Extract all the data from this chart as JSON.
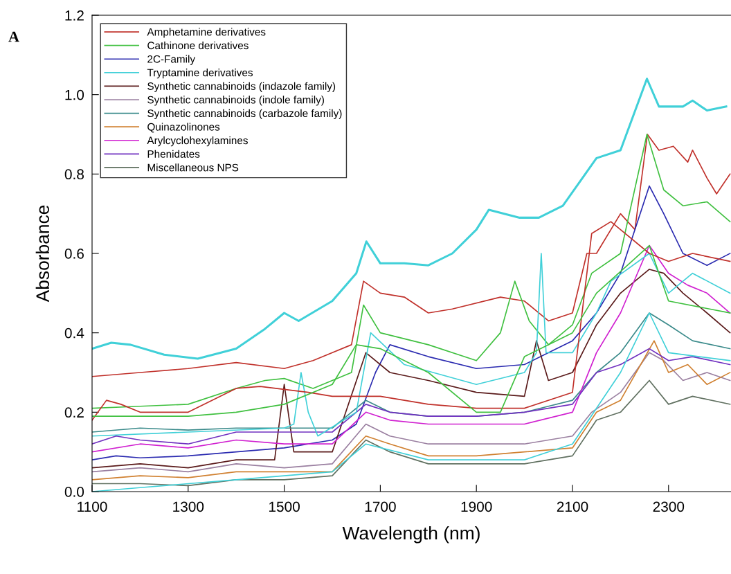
{
  "chart_data": {
    "type": "line",
    "xlabel": "Wavelength (nm)",
    "ylabel": "Absorbance",
    "annotations": [
      "A"
    ],
    "xlim": [
      1100,
      2430
    ],
    "xticks": [
      1100,
      1300,
      1500,
      1700,
      1900,
      2100,
      2300
    ],
    "ylim": [
      0,
      1.2
    ],
    "yticks": [
      {
        "value": 0,
        "label": "0.0"
      },
      {
        "value": 0.2,
        "label": "0.2"
      },
      {
        "value": 0.4,
        "label": "0.4"
      },
      {
        "value": 0.6,
        "label": "0.6"
      },
      {
        "value": 0.8,
        "label": "0.8"
      },
      {
        "value": 1,
        "label": "1.0"
      },
      {
        "value": 1.2,
        "label": "1.2"
      }
    ],
    "grid": false,
    "legend": "top left",
    "marker": "none",
    "line_style": "solid",
    "series": [
      {
        "name": "Amphetamine derivatives",
        "color": "#c0302a",
        "x": [
          1100,
          1200,
          1300,
          1400,
          1500,
          1560,
          1640,
          1665,
          1700,
          1750,
          1800,
          1850,
          1950,
          2000,
          2050,
          2100,
          2130,
          2150,
          2200,
          2230,
          2256,
          2280,
          2310,
          2340,
          2350,
          2380,
          2400,
          2428
        ],
        "values": [
          0.29,
          0.3,
          0.31,
          0.325,
          0.31,
          0.33,
          0.37,
          0.53,
          0.5,
          0.49,
          0.45,
          0.46,
          0.49,
          0.48,
          0.43,
          0.45,
          0.6,
          0.6,
          0.7,
          0.66,
          0.9,
          0.86,
          0.87,
          0.83,
          0.86,
          0.79,
          0.75,
          0.8
        ]
      },
      {
        "name": "Cathinone derivatives",
        "color": "#40c040",
        "x": [
          1100,
          1200,
          1300,
          1400,
          1460,
          1500,
          1560,
          1640,
          1665,
          1700,
          1800,
          1900,
          1950,
          1980,
          2010,
          2050,
          2100,
          2140,
          2200,
          2255,
          2290,
          2330,
          2380,
          2428
        ],
        "values": [
          0.21,
          0.215,
          0.22,
          0.26,
          0.28,
          0.285,
          0.26,
          0.3,
          0.47,
          0.4,
          0.37,
          0.33,
          0.4,
          0.53,
          0.43,
          0.37,
          0.42,
          0.55,
          0.6,
          0.9,
          0.76,
          0.72,
          0.73,
          0.68
        ]
      },
      {
        "name": "2C-Family",
        "color": "#2a2ab0",
        "x": [
          1100,
          1150,
          1200,
          1300,
          1400,
          1500,
          1600,
          1650,
          1690,
          1720,
          1800,
          1900,
          2000,
          2100,
          2150,
          2200,
          2260,
          2290,
          2330,
          2380,
          2428
        ],
        "values": [
          0.08,
          0.09,
          0.085,
          0.09,
          0.1,
          0.11,
          0.13,
          0.17,
          0.3,
          0.37,
          0.34,
          0.31,
          0.32,
          0.38,
          0.45,
          0.55,
          0.77,
          0.7,
          0.6,
          0.57,
          0.6
        ]
      },
      {
        "name": "Tryptamine derivatives",
        "color": "#40d0d8",
        "x": [
          1100,
          1140,
          1180,
          1250,
          1320,
          1400,
          1460,
          1500,
          1530,
          1600,
          1650,
          1671,
          1700,
          1750,
          1800,
          1850,
          1900,
          1926,
          1990,
          2030,
          2080,
          2150,
          2200,
          2255,
          2280,
          2330,
          2350,
          2380,
          2420
        ],
        "values": [
          0.36,
          0.375,
          0.37,
          0.345,
          0.335,
          0.36,
          0.41,
          0.45,
          0.43,
          0.48,
          0.55,
          0.63,
          0.575,
          0.575,
          0.57,
          0.6,
          0.66,
          0.71,
          0.69,
          0.69,
          0.72,
          0.84,
          0.86,
          1.04,
          0.97,
          0.97,
          0.985,
          0.96,
          0.97
        ]
      },
      {
        "name": "Synthetic cannabinoids (indazole family)",
        "color": "#5a1a1a",
        "x": [
          1100,
          1200,
          1300,
          1400,
          1480,
          1500,
          1520,
          1600,
          1670,
          1720,
          1800,
          1900,
          2000,
          2025,
          2050,
          2100,
          2150,
          2200,
          2260,
          2290,
          2330,
          2380,
          2428
        ],
        "values": [
          0.06,
          0.07,
          0.06,
          0.08,
          0.08,
          0.27,
          0.1,
          0.1,
          0.35,
          0.3,
          0.28,
          0.25,
          0.24,
          0.38,
          0.28,
          0.3,
          0.42,
          0.5,
          0.56,
          0.55,
          0.5,
          0.45,
          0.4
        ]
      },
      {
        "name": "Synthetic cannabinoids (indole family)",
        "color": "#9a7fa0",
        "x": [
          1100,
          1200,
          1300,
          1400,
          1500,
          1600,
          1670,
          1720,
          1800,
          1900,
          2000,
          2100,
          2140,
          2200,
          2260,
          2290,
          2330,
          2380,
          2428
        ],
        "values": [
          0.05,
          0.06,
          0.05,
          0.07,
          0.06,
          0.07,
          0.17,
          0.14,
          0.12,
          0.12,
          0.12,
          0.14,
          0.2,
          0.25,
          0.35,
          0.33,
          0.28,
          0.3,
          0.28
        ]
      },
      {
        "name": "Synthetic cannabinoids (carbazole family)",
        "color": "#3a8a8a",
        "x": [
          1100,
          1200,
          1300,
          1400,
          1500,
          1600,
          1670,
          1720,
          1800,
          1900,
          2000,
          2100,
          2150,
          2200,
          2260,
          2300,
          2350,
          2428
        ],
        "values": [
          0.15,
          0.16,
          0.155,
          0.16,
          0.16,
          0.16,
          0.23,
          0.2,
          0.19,
          0.19,
          0.2,
          0.23,
          0.3,
          0.35,
          0.45,
          0.42,
          0.38,
          0.36
        ]
      },
      {
        "name": "Quinazolinones",
        "color": "#d08030",
        "x": [
          1100,
          1200,
          1300,
          1400,
          1500,
          1600,
          1670,
          1720,
          1800,
          1900,
          2000,
          2100,
          2150,
          2200,
          2270,
          2300,
          2340,
          2380,
          2428
        ],
        "values": [
          0.03,
          0.04,
          0.035,
          0.05,
          0.05,
          0.05,
          0.14,
          0.12,
          0.09,
          0.09,
          0.1,
          0.11,
          0.2,
          0.23,
          0.38,
          0.3,
          0.32,
          0.27,
          0.3
        ]
      },
      {
        "name": "Arylcyclohexylamines",
        "color": "#d020d0",
        "x": [
          1100,
          1200,
          1300,
          1400,
          1500,
          1600,
          1670,
          1720,
          1800,
          1900,
          2000,
          2100,
          2150,
          2200,
          2260,
          2300,
          2340,
          2380,
          2428
        ],
        "values": [
          0.1,
          0.12,
          0.11,
          0.13,
          0.12,
          0.12,
          0.2,
          0.18,
          0.17,
          0.17,
          0.17,
          0.2,
          0.35,
          0.45,
          0.62,
          0.55,
          0.52,
          0.5,
          0.45
        ]
      },
      {
        "name": "Phenidates",
        "color": "#7030c0",
        "x": [
          1100,
          1150,
          1200,
          1300,
          1400,
          1500,
          1600,
          1670,
          1720,
          1800,
          1900,
          2000,
          2100,
          2150,
          2200,
          2260,
          2300,
          2350,
          2428
        ],
        "values": [
          0.12,
          0.14,
          0.13,
          0.12,
          0.15,
          0.15,
          0.15,
          0.22,
          0.2,
          0.19,
          0.19,
          0.2,
          0.22,
          0.3,
          0.32,
          0.36,
          0.33,
          0.34,
          0.32
        ]
      },
      {
        "name": "Miscellaneous NPS",
        "color": "#607060",
        "x": [
          1100,
          1200,
          1300,
          1400,
          1500,
          1600,
          1670,
          1720,
          1800,
          1900,
          2000,
          2100,
          2150,
          2200,
          2260,
          2300,
          2350,
          2428
        ],
        "values": [
          0.02,
          0.02,
          0.015,
          0.03,
          0.03,
          0.04,
          0.13,
          0.1,
          0.07,
          0.07,
          0.07,
          0.09,
          0.18,
          0.2,
          0.28,
          0.22,
          0.24,
          0.22
        ]
      },
      {
        "color": "#40d0d8",
        "x": [
          1100,
          1300,
          1500,
          1520,
          1535,
          1550,
          1570,
          1650,
          1680,
          1750,
          1900,
          2000,
          2025,
          2035,
          2045,
          2100,
          2150,
          2180,
          2260,
          2300,
          2350,
          2428
        ],
        "values": [
          0.14,
          0.15,
          0.16,
          0.17,
          0.3,
          0.2,
          0.14,
          0.2,
          0.4,
          0.32,
          0.27,
          0.3,
          0.35,
          0.6,
          0.35,
          0.35,
          0.45,
          0.53,
          0.6,
          0.5,
          0.55,
          0.5
        ]
      },
      {
        "color": "#40d0d8",
        "x": [
          1100,
          1200,
          1400,
          1600,
          1670,
          1800,
          2000,
          2100,
          2200,
          2260,
          2300,
          2428
        ],
        "values": [
          0.0,
          0.01,
          0.03,
          0.05,
          0.12,
          0.08,
          0.08,
          0.12,
          0.3,
          0.45,
          0.35,
          0.33
        ]
      },
      {
        "color": "#c0302a",
        "x": [
          1100,
          1130,
          1160,
          1200,
          1300,
          1400,
          1450,
          1550,
          1600,
          1700,
          1800,
          1900,
          2000,
          2100,
          2140,
          2180,
          2200,
          2260,
          2300,
          2350,
          2428
        ],
        "values": [
          0.18,
          0.23,
          0.22,
          0.2,
          0.2,
          0.26,
          0.265,
          0.25,
          0.24,
          0.24,
          0.22,
          0.21,
          0.21,
          0.25,
          0.65,
          0.68,
          0.66,
          0.6,
          0.58,
          0.6,
          0.58
        ]
      },
      {
        "color": "#40c040",
        "x": [
          1100,
          1300,
          1400,
          1500,
          1600,
          1650,
          1700,
          1800,
          1900,
          1950,
          2000,
          2100,
          2150,
          2260,
          2300,
          2428
        ],
        "values": [
          0.19,
          0.19,
          0.2,
          0.22,
          0.27,
          0.37,
          0.36,
          0.3,
          0.2,
          0.2,
          0.34,
          0.4,
          0.5,
          0.62,
          0.48,
          0.45
        ]
      }
    ]
  }
}
